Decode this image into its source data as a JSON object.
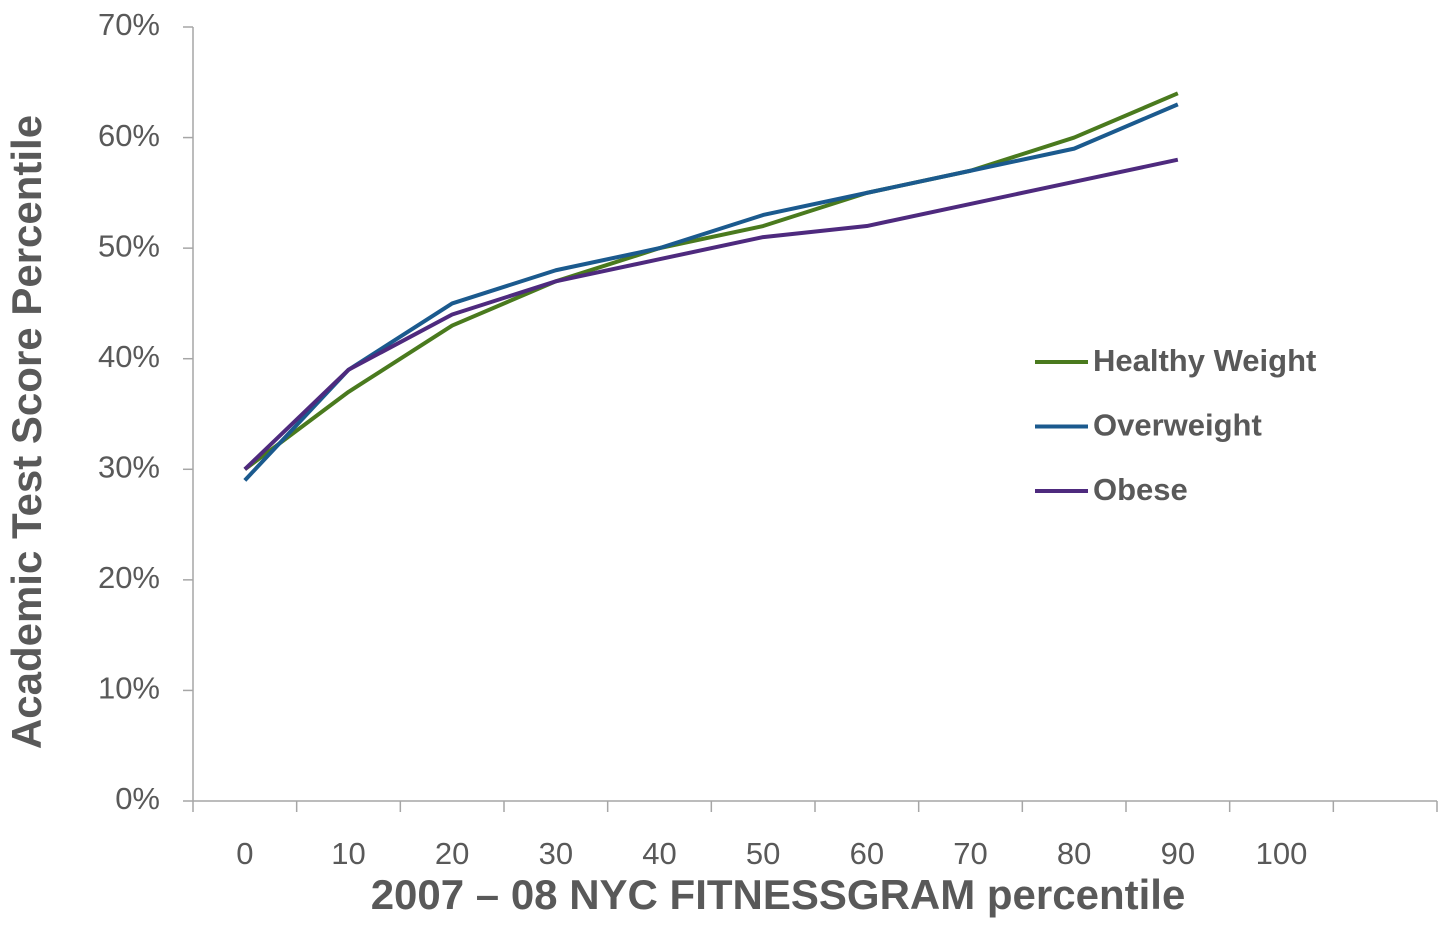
{
  "chart_data": {
    "type": "line",
    "x_label": "2007 – 08 NYC FITNESSGRAM percentile",
    "y_label": "Academic Test Score Percentile",
    "categories": [
      "0",
      "10",
      "20",
      "30",
      "40",
      "50",
      "60",
      "70",
      "80",
      "90",
      "100",
      null
    ],
    "series": [
      {
        "name": "Healthy Weight",
        "color": "#4a7a1e",
        "values": [
          30,
          37,
          43,
          47,
          50,
          52,
          55,
          57,
          60,
          64,
          null,
          null
        ]
      },
      {
        "name": "Overweight",
        "color": "#1b5a8e",
        "values": [
          29,
          39,
          45,
          48,
          50,
          53,
          55,
          57,
          59,
          63,
          null,
          null
        ]
      },
      {
        "name": "Obese",
        "color": "#4e2a7e",
        "values": [
          30,
          39,
          44,
          47,
          49,
          51,
          52,
          54,
          56,
          58,
          null,
          null
        ]
      }
    ],
    "ylim": [
      0,
      70
    ],
    "yticks": [
      {
        "value": 0,
        "label": "0%"
      },
      {
        "value": 10,
        "label": "10%"
      },
      {
        "value": 20,
        "label": "20%"
      },
      {
        "value": 30,
        "label": "30%"
      },
      {
        "value": 40,
        "label": "40%"
      },
      {
        "value": 50,
        "label": "50%"
      },
      {
        "value": 60,
        "label": "60%"
      },
      {
        "value": 70,
        "label": "70%"
      }
    ],
    "legend": "right"
  }
}
